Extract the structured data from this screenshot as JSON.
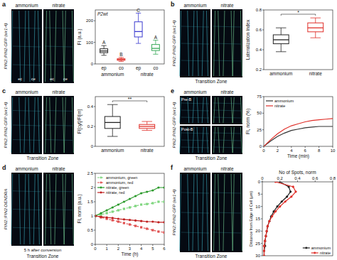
{
  "panels": [
    {
      "label": "a",
      "image_labels": [
        "ammonium",
        "nitrate"
      ],
      "image_marks": [
        "ec",
        "ce",
        "ec",
        "ce"
      ],
      "side_label": "PIN2::PIN2-GFP (eir1-4)"
    },
    {
      "label": "b",
      "image_labels": [
        "ammonium",
        "nitrate"
      ],
      "side_label": "PIN2::PIN2-GFP (eir1-4)",
      "zone": "Transition Zone"
    },
    {
      "label": "c",
      "image_labels": [
        "ammonium",
        "nitrate"
      ],
      "side_label": "PIN2::PIN2-GFP (eir1-4)",
      "zone": "Transition Zone"
    },
    {
      "label": "d",
      "image_labels": [
        "ammonium",
        "nitrate"
      ],
      "side_label": "PIN2::PIN2-DENDRA",
      "caption": "5 h after conversion",
      "zone": "Transition Zone"
    },
    {
      "label": "e",
      "image_labels": [
        "ammonium",
        "nitrate"
      ],
      "row_labels": [
        "Pre-B",
        "Post-B"
      ],
      "side_label": "PIN2::PIN2-GFP (eir1-4)",
      "zone": "Transition Zone"
    },
    {
      "label": "f",
      "image_labels": [
        "ammonium",
        "nitrate"
      ],
      "side_label": "PIN2::PIN2-GFP (eir1-4)",
      "zone": "Transition Zone"
    }
  ],
  "chart_data": [
    {
      "type": "box",
      "title": "P2wt",
      "y_label": "FI (a.u.)",
      "categories": [
        "ep",
        "co",
        "ep",
        "co"
      ],
      "groups": [
        "ammonium",
        "nitrate"
      ],
      "boxes": [
        {
          "min": 40,
          "q1": 52,
          "median": 60,
          "q3": 70,
          "max": 85
        },
        {
          "min": 12,
          "q1": 17,
          "median": 20,
          "q3": 24,
          "max": 30
        },
        {
          "min": 95,
          "q1": 125,
          "median": 150,
          "q3": 195,
          "max": 235
        },
        {
          "min": 45,
          "q1": 62,
          "median": 72,
          "q3": 90,
          "max": 110
        }
      ],
      "colors": [
        "#222222",
        "#e0302a",
        "#3b3bd0",
        "#3aaa5a"
      ],
      "letters": [
        "A",
        "B",
        "C",
        "A"
      ],
      "ylim": [
        0,
        250
      ],
      "yticks": [
        0,
        100,
        200
      ]
    },
    {
      "type": "box",
      "y_label": "Lateralization Index",
      "categories": [
        "ammonium",
        "nitrate"
      ],
      "boxes": [
        {
          "min": 0.38,
          "q1": 0.46,
          "median": 0.5,
          "q3": 0.55,
          "max": 0.62
        },
        {
          "min": 0.52,
          "q1": 0.58,
          "median": 0.62,
          "q3": 0.67,
          "max": 0.72
        }
      ],
      "colors": [
        "#222222",
        "#e0302a"
      ],
      "significance": "*",
      "ylim": [
        0.2,
        0.8
      ],
      "yticks": [
        0.2,
        0.4,
        0.6,
        0.8
      ]
    },
    {
      "type": "box",
      "y_label": "FI[cyt]/FI[m]",
      "categories": [
        "ammonium",
        "nitrate"
      ],
      "boxes": [
        {
          "min": 0.1,
          "q1": 0.18,
          "median": 0.24,
          "q3": 0.3,
          "max": 0.42
        },
        {
          "min": 0.16,
          "q1": 0.18,
          "median": 0.2,
          "q3": 0.22,
          "max": 0.25
        }
      ],
      "colors": [
        "#222222",
        "#e0302a"
      ],
      "significance": "**",
      "ylim": [
        0,
        0.5
      ],
      "yticks": [
        0,
        0.2,
        0.4
      ]
    },
    {
      "type": "line",
      "x_label": "Time (h)",
      "y_label": "FI, norm (a.u.)",
      "x": [
        0,
        0.5,
        1,
        1.5,
        2,
        2.5,
        3,
        3.5,
        4,
        4.5,
        5,
        5.5,
        6
      ],
      "xlim": [
        0,
        6
      ],
      "xticks": [
        0,
        1,
        2,
        3,
        4,
        5,
        6
      ],
      "ylim": [
        0,
        2.5
      ],
      "yticks": [
        0,
        0.5,
        1,
        1.5,
        2,
        2.5
      ],
      "legend": "top-left",
      "series": [
        {
          "name": "ammonium, green",
          "color": "#7fd67f",
          "marker": "square",
          "line_style": "dashed",
          "values": [
            1,
            1.05,
            1.1,
            1.15,
            1.2,
            1.25,
            1.3,
            1.35,
            1.4,
            1.42,
            1.45,
            1.5,
            1.5
          ]
        },
        {
          "name": "ammonium, red",
          "color": "#e05050",
          "marker": "square",
          "line_style": "dashed",
          "values": [
            1,
            0.95,
            0.9,
            0.85,
            0.8,
            0.75,
            0.7,
            0.65,
            0.6,
            0.55,
            0.5,
            0.45,
            0.42
          ]
        },
        {
          "name": "nitrate, green",
          "color": "#2a9a2a",
          "marker": "circle",
          "line_style": "solid",
          "values": [
            1,
            1.1,
            1.2,
            1.3,
            1.4,
            1.5,
            1.6,
            1.7,
            1.8,
            1.85,
            1.9,
            2,
            2
          ]
        },
        {
          "name": "nitrate, red",
          "color": "#c02020",
          "marker": "circle",
          "line_style": "solid",
          "values": [
            1,
            0.97,
            0.95,
            0.93,
            0.9,
            0.88,
            0.86,
            0.84,
            0.82,
            0.8,
            0.8,
            0.78,
            0.78
          ]
        }
      ]
    },
    {
      "type": "line",
      "x_label": "Time (min)",
      "y_label": "FI, norm (%)",
      "x": [
        0,
        1,
        2,
        3,
        4,
        5,
        6,
        7,
        8,
        9,
        10
      ],
      "xlim": [
        0,
        10
      ],
      "xticks": [
        0,
        2,
        4,
        6,
        8,
        10
      ],
      "ylim": [
        0,
        75
      ],
      "yticks": [
        0,
        25,
        50,
        75
      ],
      "legend": "top-left",
      "series": [
        {
          "name": "ammonium",
          "color": "#333333",
          "line_style": "solid",
          "values": [
            0,
            8,
            15,
            20,
            24,
            26,
            28,
            29,
            30,
            30,
            30
          ]
        },
        {
          "name": "nitrate",
          "color": "#e0302a",
          "line_style": "solid",
          "values": [
            0,
            10,
            19,
            26,
            31,
            34,
            37,
            39,
            40,
            41,
            42
          ]
        }
      ]
    },
    {
      "type": "line",
      "orientation": "horizontal",
      "x_label": "Distance from Edge of Cell (µm)",
      "y_label": "No of Spots, norm",
      "x": [
        0,
        2,
        4,
        6,
        8,
        10,
        12,
        14,
        16,
        18,
        20,
        22,
        24,
        26,
        28,
        30
      ],
      "xlim": [
        0,
        30
      ],
      "xticks": [
        0,
        5,
        10,
        15,
        20,
        25,
        30
      ],
      "ylim": [
        0,
        0.8
      ],
      "yticks": [
        0,
        0.2,
        0.4,
        0.6,
        0.8
      ],
      "legend": "bottom-right",
      "series": [
        {
          "name": "ammonium",
          "color": "#222222",
          "marker": "circle",
          "line_style": "solid",
          "values": [
            0.2,
            0.3,
            0.32,
            0.28,
            0.22,
            0.17,
            0.13,
            0.1,
            0.08,
            0.06,
            0.05,
            0.04,
            0.03,
            0.03,
            0.02,
            0.02
          ]
        },
        {
          "name": "nitrate",
          "color": "#e0302a",
          "marker": "circle",
          "line_style": "solid",
          "values": [
            0.15,
            0.35,
            0.38,
            0.33,
            0.26,
            0.2,
            0.15,
            0.11,
            0.08,
            0.06,
            0.05,
            0.04,
            0.03,
            0.02,
            0.02,
            0.02
          ]
        }
      ]
    }
  ]
}
